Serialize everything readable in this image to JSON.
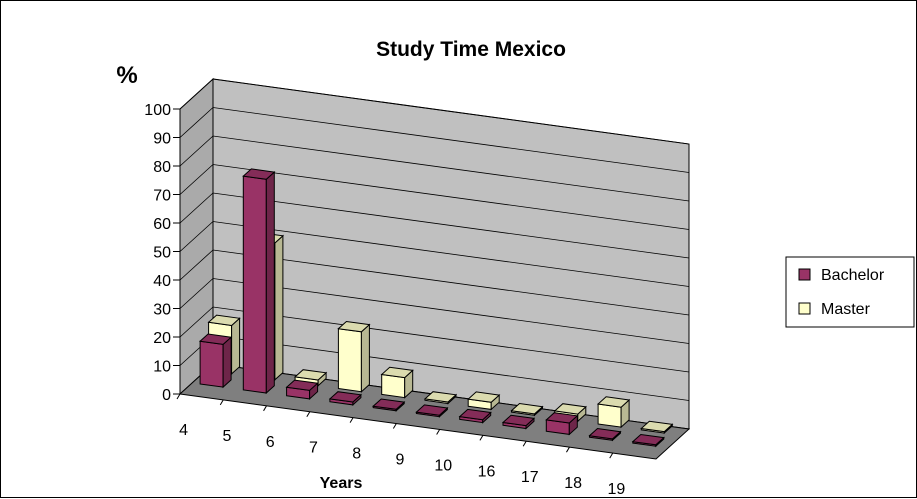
{
  "chart_data": {
    "type": "bar",
    "title": "Study Time Mexico",
    "ylabel": "%",
    "xlabel": "Years",
    "categories": [
      "4",
      "5",
      "6",
      "7",
      "8",
      "9",
      "10",
      "16",
      "17",
      "18",
      "19"
    ],
    "series": [
      {
        "name": "Bachelor",
        "values": [
          15,
          75,
          3,
          1,
          0.5,
          0.5,
          1,
          1,
          4,
          0.5,
          0.5
        ],
        "color": "#993366"
      },
      {
        "name": "Master",
        "values": [
          17,
          48,
          2,
          21,
          7,
          0.5,
          2.5,
          0.5,
          2.5,
          7,
          0.5
        ],
        "color": "#FFFFCC"
      }
    ],
    "y_ticks": [
      "0",
      "10",
      "20",
      "30",
      "40",
      "50",
      "60",
      "70",
      "80",
      "90",
      "100"
    ],
    "ylim": [
      0,
      100
    ],
    "grid": true,
    "legend": "right",
    "wall_color": "#C0C0C0"
  }
}
